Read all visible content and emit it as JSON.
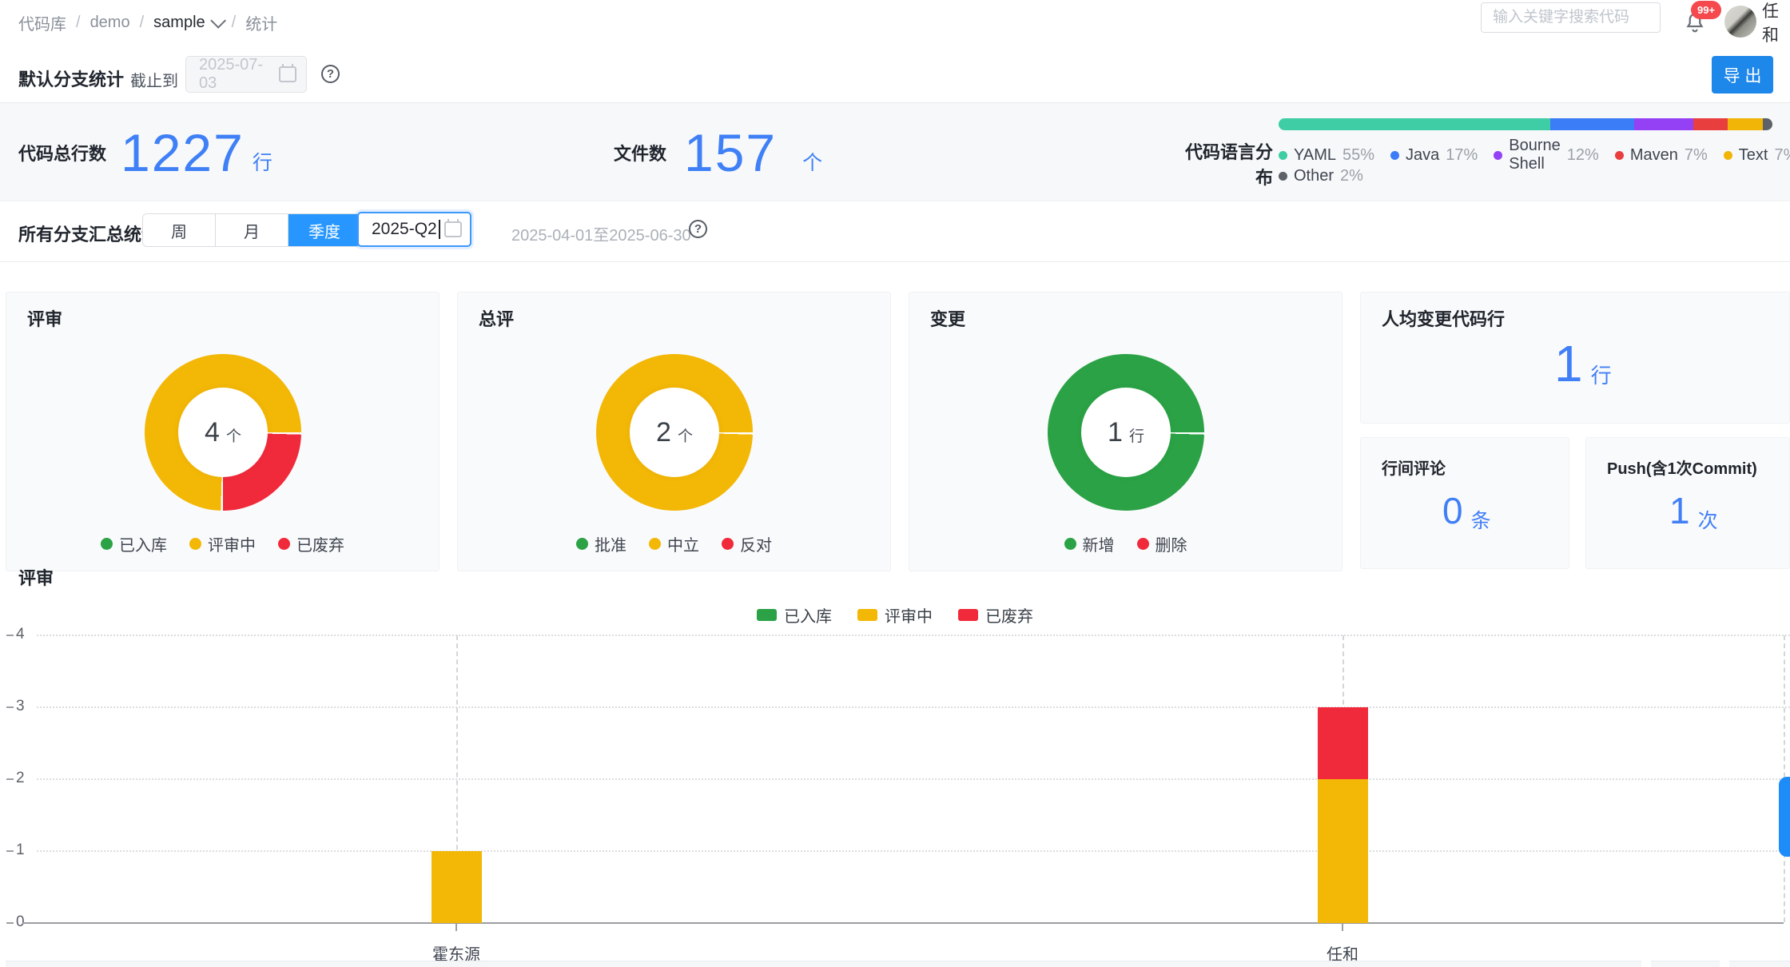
{
  "topbar": {
    "breadcrumb": [
      {
        "label": "代码库",
        "current": false
      },
      {
        "label": "demo",
        "current": false
      },
      {
        "label": "sample",
        "current": true,
        "caret": true
      },
      {
        "label": "统计",
        "current": false
      }
    ],
    "search_placeholder": "输入关键字搜索代码",
    "notification_badge": "99+",
    "user_name": "任和"
  },
  "filter_bar": {
    "title": "默认分支统计",
    "until_label": "截止到",
    "date_value": "2025-07-03",
    "export_label": "导 出"
  },
  "summary": {
    "total_lines": {
      "label": "代码总行数",
      "value": "1227",
      "unit": "行"
    },
    "file_count": {
      "label": "文件数",
      "value": "157",
      "unit": "个"
    },
    "language": {
      "label": "代码语言分布",
      "items": [
        {
          "name": "YAML",
          "pct": 55,
          "color": "#3ecda4"
        },
        {
          "name": "Java",
          "pct": 17,
          "color": "#3b7cf7"
        },
        {
          "name": "Bourne Shell",
          "pct": 12,
          "color": "#9440f5"
        },
        {
          "name": "Maven",
          "pct": 7,
          "color": "#e83e3e"
        },
        {
          "name": "Text",
          "pct": 7,
          "color": "#f0b506"
        },
        {
          "name": "Other",
          "pct": 2,
          "color": "#5c6268"
        }
      ]
    }
  },
  "branch_bar": {
    "title": "所有分支汇总统计",
    "period_options": [
      "周",
      "月",
      "季度"
    ],
    "selected_period": "季度",
    "date_value": "2025-Q2",
    "range_text": "2025-04-01至2025-06-30"
  },
  "cards_extra": {
    "avg_lines": {
      "title": "人均变更代码行",
      "value": "1",
      "unit": "行"
    },
    "inline_comments": {
      "title": "行间评论",
      "value": "0",
      "unit": "条"
    },
    "push": {
      "title": "Push(含1次Commit)",
      "value": "1",
      "unit": "次"
    }
  },
  "colors": {
    "accent_blue": "#1d87ea",
    "toggle_blue": "#2797ff",
    "number_blue": "#417ff7",
    "green": "#2ba245",
    "yellow": "#f3b706",
    "red": "#f02a3a",
    "badge_red": "#f5494d"
  },
  "chart_data": [
    {
      "type": "pie",
      "title": "评审",
      "center_value": "4",
      "center_unit": "个",
      "segments": [
        {
          "label": "已入库",
          "value": 0,
          "color": "#2ba245"
        },
        {
          "label": "评审中",
          "value": 3,
          "color": "#f3b706"
        },
        {
          "label": "已废弃",
          "value": 1,
          "color": "#f02a3a"
        }
      ]
    },
    {
      "type": "pie",
      "title": "总评",
      "center_value": "2",
      "center_unit": "个",
      "segments": [
        {
          "label": "批准",
          "value": 0,
          "color": "#2ba245"
        },
        {
          "label": "中立",
          "value": 2,
          "color": "#f3b706"
        },
        {
          "label": "反对",
          "value": 0,
          "color": "#f02a3a"
        }
      ]
    },
    {
      "type": "pie",
      "title": "变更",
      "center_value": "1",
      "center_unit": "行",
      "segments": [
        {
          "label": "新增",
          "value": 1,
          "color": "#2ba245"
        },
        {
          "label": "删除",
          "value": 0,
          "color": "#f02a3a"
        }
      ]
    },
    {
      "type": "bar",
      "title": "评审",
      "stacked": true,
      "categories": [
        "霍东源",
        "任和"
      ],
      "ylim": [
        0,
        4
      ],
      "grid": "dotted",
      "legend_position": "top-center",
      "series": [
        {
          "name": "已入库",
          "color": "#2ba245",
          "values": [
            0,
            0
          ]
        },
        {
          "name": "评审中",
          "color": "#f3b706",
          "values": [
            1,
            2
          ]
        },
        {
          "name": "已废弃",
          "color": "#f02a3a",
          "values": [
            0,
            1
          ]
        }
      ]
    }
  ]
}
